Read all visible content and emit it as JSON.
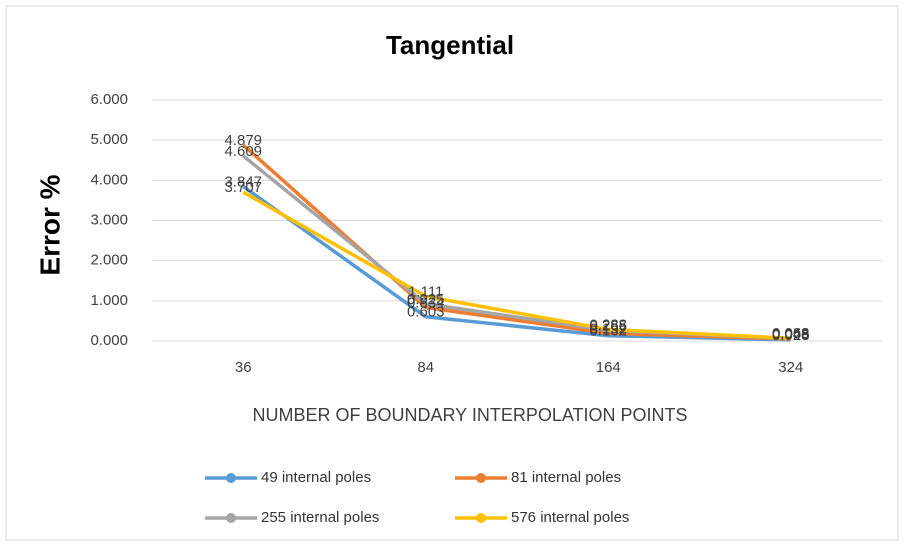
{
  "chart_data": {
    "type": "line",
    "title": "Tangential",
    "x_label": "NUMBER OF BOUNDARY INTERPOLATION POINTS",
    "y_label": "Error %",
    "categories": [
      "36",
      "84",
      "164",
      "324"
    ],
    "series": [
      {
        "name": "49 internal poles",
        "color": "#5b9bd5",
        "values": [
          3.847,
          0.603,
          0.132,
          0.028
        ]
      },
      {
        "name": "81 internal poles",
        "color": "#ed7d31",
        "values": [
          4.879,
          0.834,
          0.192,
          0.048
        ]
      },
      {
        "name": "255 internal poles",
        "color": "#a5a5a5",
        "values": [
          4.609,
          0.925,
          0.265,
          0.058
        ]
      },
      {
        "name": "576  internal poles",
        "color": "#ffc000",
        "values": [
          3.707,
          1.111,
          0.288,
          0.068
        ]
      }
    ],
    "ylim": [
      0,
      6
    ],
    "yticks": [
      {
        "value": 0,
        "label": "0.000"
      },
      {
        "value": 1,
        "label": "1.000"
      },
      {
        "value": 2,
        "label": "2.000"
      },
      {
        "value": 3,
        "label": "3.000"
      },
      {
        "value": 4,
        "label": "4.000"
      },
      {
        "value": 5,
        "label": "5.000"
      },
      {
        "value": 6,
        "label": "6.000"
      }
    ],
    "grid": true
  }
}
